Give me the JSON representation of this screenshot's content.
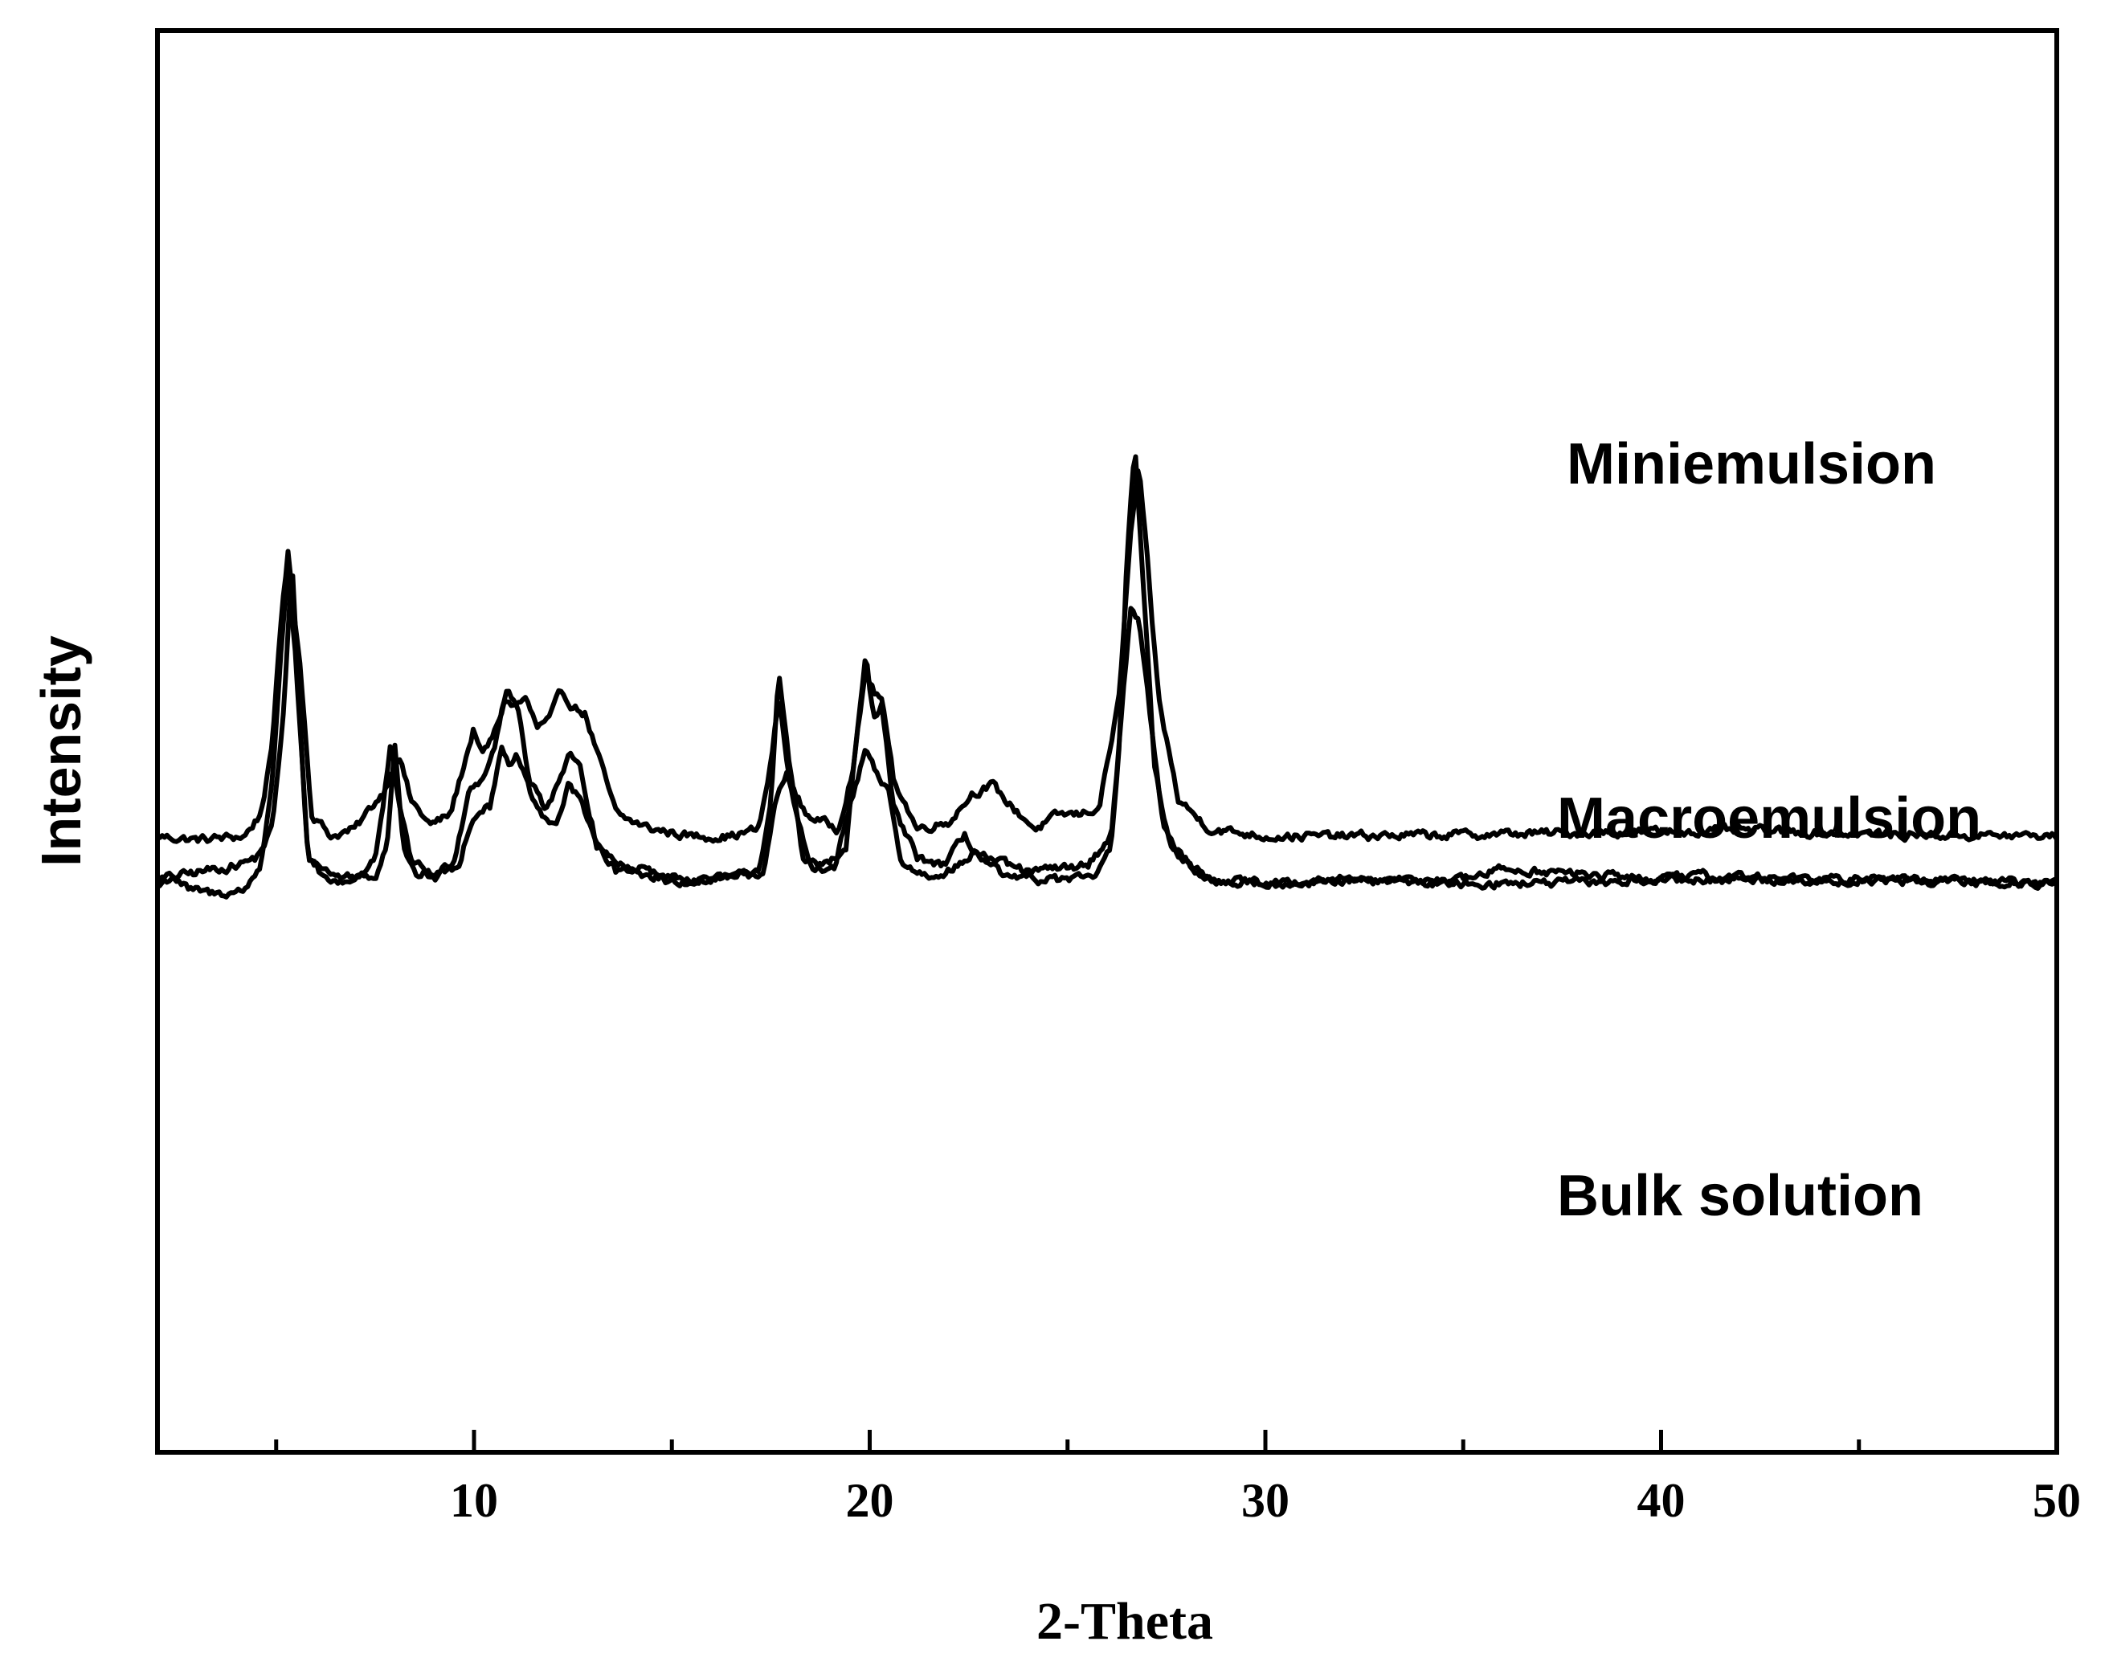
{
  "chart_data": {
    "type": "line",
    "title": "",
    "xlabel": "2-Theta",
    "ylabel": "Intensity",
    "xlim": [
      2,
      50
    ],
    "xticks": [
      10,
      20,
      30,
      40,
      50
    ],
    "xtick_labels": [
      "10",
      "20",
      "30",
      "40",
      "50"
    ],
    "minor_xticks": [
      5,
      15,
      25,
      35,
      45
    ],
    "yticks_shown": false,
    "grid": false,
    "legend": "none",
    "line_color": "#000000",
    "note": "",
    "series": [
      {
        "name": "Miniemulsion",
        "baseline": 0.6,
        "points": [
          [
            2,
            0.6
          ],
          [
            3,
            0.55
          ],
          [
            4.2,
            0.6
          ],
          [
            4.6,
            0.9
          ],
          [
            4.9,
            1.8
          ],
          [
            5.1,
            3.5
          ],
          [
            5.3,
            4.5
          ],
          [
            5.6,
            3.0
          ],
          [
            5.9,
            0.9
          ],
          [
            6.4,
            0.6
          ],
          [
            7,
            0.7
          ],
          [
            7.4,
            1.0
          ],
          [
            7.7,
            1.2
          ],
          [
            8.1,
            1.75
          ],
          [
            8.4,
            1.1
          ],
          [
            8.9,
            0.75
          ],
          [
            9.4,
            0.9
          ],
          [
            9.7,
            1.5
          ],
          [
            10.0,
            2.1
          ],
          [
            10.2,
            1.7
          ],
          [
            10.5,
            2.0
          ],
          [
            10.8,
            2.5
          ],
          [
            11.0,
            2.4
          ],
          [
            11.3,
            2.5
          ],
          [
            11.6,
            2.1
          ],
          [
            11.9,
            2.2
          ],
          [
            12.2,
            2.6
          ],
          [
            12.5,
            2.4
          ],
          [
            12.8,
            2.3
          ],
          [
            13.2,
            1.6
          ],
          [
            13.6,
            0.9
          ],
          [
            14.0,
            0.8
          ],
          [
            14.5,
            0.7
          ],
          [
            15.5,
            0.6
          ],
          [
            16.5,
            0.6
          ],
          [
            17.2,
            0.7
          ],
          [
            17.5,
            1.6
          ],
          [
            17.7,
            2.5
          ],
          [
            18.0,
            1.3
          ],
          [
            18.4,
            0.9
          ],
          [
            19.2,
            0.7
          ],
          [
            19.6,
            1.6
          ],
          [
            19.9,
            2.9
          ],
          [
            20.1,
            2.6
          ],
          [
            20.3,
            2.5
          ],
          [
            20.6,
            1.4
          ],
          [
            21.2,
            0.7
          ],
          [
            22.0,
            0.8
          ],
          [
            22.6,
            1.2
          ],
          [
            23.1,
            1.3
          ],
          [
            23.6,
            1.0
          ],
          [
            24.2,
            0.7
          ],
          [
            24.8,
            0.9
          ],
          [
            25.3,
            0.9
          ],
          [
            25.8,
            1.0
          ],
          [
            26.3,
            2.5
          ],
          [
            26.6,
            4.8
          ],
          [
            26.8,
            5.7
          ],
          [
            27.0,
            4.5
          ],
          [
            27.3,
            2.5
          ],
          [
            27.8,
            1.1
          ],
          [
            28.6,
            0.7
          ],
          [
            30,
            0.6
          ],
          [
            32,
            0.6
          ],
          [
            35,
            0.62
          ],
          [
            38,
            0.65
          ],
          [
            42,
            0.68
          ],
          [
            44,
            0.65
          ],
          [
            46,
            0.62
          ],
          [
            50,
            0.6
          ]
        ]
      },
      {
        "name": "Macroemulsion",
        "baseline": 0.0,
        "points": [
          [
            2,
            0.0
          ],
          [
            3,
            0.1
          ],
          [
            4,
            0.2
          ],
          [
            4.5,
            0.3
          ],
          [
            4.9,
            0.7
          ],
          [
            5.2,
            2.4
          ],
          [
            5.4,
            4.4
          ],
          [
            5.6,
            2.2
          ],
          [
            5.8,
            0.3
          ],
          [
            6.5,
            0.05
          ],
          [
            7.5,
            0.05
          ],
          [
            7.8,
            0.5
          ],
          [
            8.0,
            1.9
          ],
          [
            8.2,
            0.5
          ],
          [
            8.5,
            0.05
          ],
          [
            9.6,
            0.15
          ],
          [
            9.9,
            0.8
          ],
          [
            10.2,
            1.0
          ],
          [
            10.4,
            1.0
          ],
          [
            10.7,
            1.9
          ],
          [
            10.9,
            1.5
          ],
          [
            11.1,
            1.7
          ],
          [
            11.4,
            1.2
          ],
          [
            11.8,
            0.8
          ],
          [
            12.1,
            0.8
          ],
          [
            12.4,
            1.3
          ],
          [
            12.7,
            1.1
          ],
          [
            13.2,
            0.4
          ],
          [
            13.8,
            0.15
          ],
          [
            14.5,
            0.05
          ],
          [
            16,
            0.0
          ],
          [
            17.3,
            0.1
          ],
          [
            17.6,
            1.0
          ],
          [
            17.9,
            1.45
          ],
          [
            18.2,
            0.8
          ],
          [
            18.6,
            0.1
          ],
          [
            19.1,
            0.15
          ],
          [
            19.5,
            1.0
          ],
          [
            19.9,
            1.8
          ],
          [
            20.2,
            1.4
          ],
          [
            20.5,
            1.2
          ],
          [
            20.8,
            0.2
          ],
          [
            21.5,
            0.05
          ],
          [
            22.3,
            0.2
          ],
          [
            22.7,
            0.4
          ],
          [
            23.2,
            0.25
          ],
          [
            24.0,
            0.1
          ],
          [
            25.5,
            0.2
          ],
          [
            26.1,
            0.6
          ],
          [
            26.4,
            2.5
          ],
          [
            26.6,
            3.8
          ],
          [
            26.8,
            3.6
          ],
          [
            27.1,
            2.2
          ],
          [
            27.4,
            0.8
          ],
          [
            27.8,
            0.3
          ],
          [
            28.6,
            0.0
          ],
          [
            30,
            -0.05
          ],
          [
            35,
            0.0
          ],
          [
            36,
            0.15
          ],
          [
            40,
            0.0
          ],
          [
            45,
            0.0
          ],
          [
            50,
            -0.05
          ]
        ]
      },
      {
        "name": "Bulk solution",
        "baseline": -0.6,
        "points": [
          [
            2,
            -0.1
          ],
          [
            2.4,
            0.05
          ],
          [
            2.8,
            -0.15
          ],
          [
            3.5,
            -0.2
          ],
          [
            4.2,
            -0.15
          ],
          [
            4.6,
            0.2
          ],
          [
            4.9,
            1.3
          ],
          [
            5.1,
            3.0
          ],
          [
            5.3,
            4.4
          ],
          [
            5.5,
            3.0
          ],
          [
            5.8,
            0.3
          ],
          [
            6.3,
            -0.05
          ],
          [
            7.0,
            0.0
          ],
          [
            7.5,
            0.3
          ],
          [
            7.7,
            1.0
          ],
          [
            7.9,
            1.9
          ],
          [
            8.1,
            1.0
          ],
          [
            8.4,
            0.3
          ],
          [
            9.0,
            0.0
          ],
          [
            9.5,
            0.3
          ],
          [
            9.9,
            1.3
          ],
          [
            10.2,
            1.4
          ],
          [
            10.5,
            1.8
          ],
          [
            10.8,
            2.6
          ],
          [
            11.1,
            2.4
          ],
          [
            11.4,
            1.4
          ],
          [
            11.8,
            1.0
          ],
          [
            12.1,
            1.3
          ],
          [
            12.4,
            1.7
          ],
          [
            12.7,
            1.5
          ],
          [
            13.1,
            0.5
          ],
          [
            13.6,
            0.1
          ],
          [
            14.3,
            0.2
          ],
          [
            15,
            -0.05
          ],
          [
            16,
            0.0
          ],
          [
            17.2,
            0.1
          ],
          [
            17.5,
            1.0
          ],
          [
            17.7,
            2.9
          ],
          [
            18.0,
            1.5
          ],
          [
            18.3,
            0.3
          ],
          [
            18.9,
            0.2
          ],
          [
            19.4,
            0.4
          ],
          [
            19.7,
            2.1
          ],
          [
            19.9,
            3.1
          ],
          [
            20.1,
            2.2
          ],
          [
            20.3,
            2.4
          ],
          [
            20.6,
            1.0
          ],
          [
            21.2,
            0.3
          ],
          [
            21.9,
            0.2
          ],
          [
            22.4,
            0.6
          ],
          [
            22.8,
            0.3
          ],
          [
            23.5,
            0.0
          ],
          [
            25.6,
            0.0
          ],
          [
            26.1,
            0.4
          ],
          [
            26.3,
            1.8
          ],
          [
            26.5,
            4.5
          ],
          [
            26.7,
            6.0
          ],
          [
            26.9,
            4.2
          ],
          [
            27.2,
            1.5
          ],
          [
            27.6,
            0.5
          ],
          [
            28.3,
            0.1
          ],
          [
            29,
            -0.05
          ],
          [
            30,
            -0.05
          ],
          [
            32,
            0.0
          ],
          [
            35,
            -0.05
          ],
          [
            38,
            -0.05
          ],
          [
            40,
            0.0
          ],
          [
            41,
            0.05
          ],
          [
            45,
            0.0
          ],
          [
            50,
            -0.05
          ]
        ]
      }
    ]
  },
  "labels": {
    "miniemulsion": "Miniemulsion",
    "macroemulsion": "Macroemulsion",
    "bulk": "Bulk solution"
  }
}
